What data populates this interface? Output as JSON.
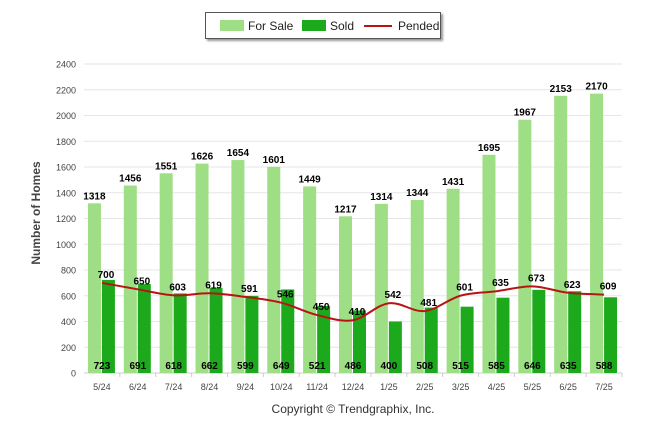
{
  "legend": {
    "for_sale": "For Sale",
    "sold": "Sold",
    "pended": "Pended"
  },
  "copyright": "Copyright © Trendgraphix, Inc.",
  "colors": {
    "for_sale": "#9EDE84",
    "sold": "#1CAA1C",
    "pended": "#B81414",
    "grid": "#e6e6e6"
  },
  "chart_data": {
    "type": "bar",
    "ylabel": "Number of Homes",
    "ylim": [
      0,
      2400
    ],
    "yticks": [
      0,
      200,
      400,
      600,
      800,
      1000,
      1200,
      1400,
      1600,
      1800,
      2000,
      2200,
      2400
    ],
    "categories": [
      "5/24",
      "6/24",
      "7/24",
      "8/24",
      "9/24",
      "10/24",
      "11/24",
      "12/24",
      "1/25",
      "2/25",
      "3/25",
      "4/25",
      "5/25",
      "6/25",
      "7/25"
    ],
    "series": [
      {
        "name": "For Sale",
        "type": "bar",
        "values": [
          1318,
          1456,
          1551,
          1626,
          1654,
          1601,
          1449,
          1217,
          1314,
          1344,
          1431,
          1695,
          1967,
          2153,
          2170
        ]
      },
      {
        "name": "Sold",
        "type": "bar",
        "values": [
          723,
          691,
          618,
          662,
          599,
          649,
          521,
          486,
          400,
          508,
          515,
          585,
          646,
          635,
          588
        ]
      },
      {
        "name": "Pended",
        "type": "line",
        "values": [
          700,
          650,
          603,
          619,
          591,
          546,
          450,
          410,
          542,
          481,
          601,
          635,
          673,
          623,
          609
        ]
      }
    ],
    "grid": true,
    "legend_position": "top"
  }
}
